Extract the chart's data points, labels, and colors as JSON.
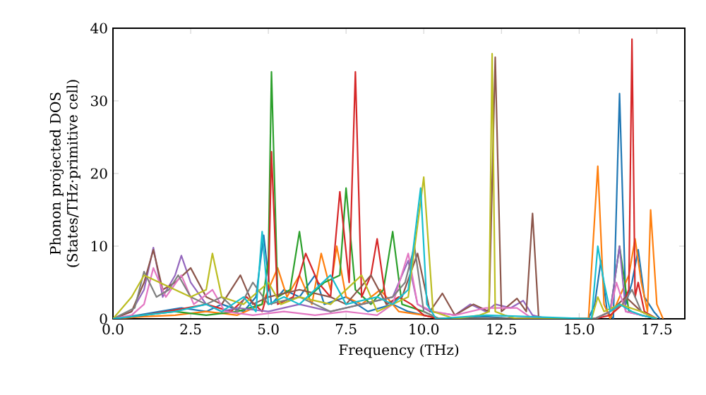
{
  "chart_data": {
    "type": "line",
    "xlabel": "Frequency (THz)",
    "ylabel": "Phonon projected DOS (States/THz·primitive cell)",
    "xlim": [
      0,
      18.4
    ],
    "ylim": [
      0,
      40
    ],
    "xticks": [
      {
        "value": 0,
        "label": "0.0"
      },
      {
        "value": 2.5,
        "label": "2.5"
      },
      {
        "value": 5,
        "label": "5.0"
      },
      {
        "value": 7.5,
        "label": "7.5"
      },
      {
        "value": 10,
        "label": "10.0"
      },
      {
        "value": 12.5,
        "label": "12.5"
      },
      {
        "value": 15,
        "label": "15.0"
      },
      {
        "value": 17.5,
        "label": "17.5"
      }
    ],
    "yticks": [
      0,
      10,
      20,
      30,
      40
    ],
    "grid": false,
    "marker": "none",
    "line_style": "solid",
    "series": [
      {
        "color": "#1f77b4",
        "x": [
          0,
          0.8,
          1.5,
          2.2,
          3,
          3.5,
          4.2,
          4.6,
          4.85,
          5.1,
          5.5,
          6.0,
          6.5,
          6.8,
          7.5,
          8.2,
          9.0,
          9.5,
          10.0,
          10.5,
          12,
          13,
          15.3,
          15.5,
          15.7,
          15.9,
          16.1,
          16.3,
          16.5,
          16.7,
          16.9,
          17.1,
          17.4,
          17.6
        ],
        "values": [
          0,
          0.5,
          1,
          1.5,
          1,
          2,
          1,
          3,
          11.5,
          2,
          4,
          3,
          6,
          2,
          3,
          1,
          2,
          1,
          0.5,
          0,
          0.3,
          0,
          0,
          2,
          8,
          1,
          0,
          31,
          2,
          5,
          9.5,
          3,
          1,
          0
        ]
      },
      {
        "color": "#ff7f0e",
        "x": [
          0,
          1,
          2,
          3,
          4,
          4.8,
          5.3,
          5.6,
          6.0,
          6.4,
          6.7,
          7.0,
          7.2,
          7.5,
          8,
          8.6,
          9.2,
          10,
          10.5,
          15.3,
          15.6,
          15.8,
          16.0,
          16.3,
          16.6,
          16.8,
          17.0,
          17.2,
          17.3,
          17.5,
          17.7
        ],
        "values": [
          0,
          0.3,
          0.5,
          1,
          0.5,
          2,
          7,
          3,
          6,
          2,
          9,
          4,
          10,
          3,
          2,
          4,
          1,
          0.5,
          0,
          0,
          21,
          2,
          0,
          3,
          6,
          11,
          5,
          1,
          15,
          2,
          0
        ]
      },
      {
        "color": "#2ca02c",
        "x": [
          0,
          1,
          2,
          3,
          4,
          4.8,
          5.0,
          5.1,
          5.3,
          5.7,
          6.0,
          6.3,
          6.8,
          7.3,
          7.5,
          7.8,
          8.3,
          8.7,
          9.0,
          9.3,
          10,
          10.5,
          15.5,
          16.0,
          16.3,
          16.6,
          17.0,
          17.5
        ],
        "values": [
          0,
          0.5,
          1,
          0.5,
          1,
          2,
          8,
          34,
          3,
          4,
          12,
          3,
          5,
          6,
          18,
          4,
          2,
          4,
          12,
          2,
          1,
          0,
          0,
          1,
          10,
          1,
          0.5,
          0
        ]
      },
      {
        "color": "#d62728",
        "x": [
          0,
          1,
          2,
          3,
          3.8,
          4.3,
          4.8,
          5.0,
          5.1,
          5.3,
          5.8,
          6.2,
          6.6,
          7.0,
          7.3,
          7.6,
          7.8,
          8.0,
          8.3,
          8.5,
          8.8,
          9.2,
          9.6,
          10,
          10.5,
          15.5,
          16.0,
          16.4,
          16.6,
          16.7,
          16.8,
          16.9,
          17.1,
          17.5
        ],
        "values": [
          0,
          0.5,
          1.2,
          2,
          1,
          3,
          1,
          4,
          23,
          2,
          3,
          9,
          5,
          3,
          17.5,
          5,
          34,
          3,
          6,
          11,
          2,
          3,
          2,
          0.5,
          0,
          0,
          0.5,
          2,
          4,
          38.5,
          3,
          5,
          1,
          0
        ]
      },
      {
        "color": "#9467bd",
        "x": [
          0,
          0.6,
          1.0,
          1.3,
          1.6,
          2.0,
          2.2,
          2.5,
          3.0,
          3.5,
          4,
          5,
          6,
          7,
          8,
          9,
          9.5,
          9.8,
          10.2,
          11,
          11.5,
          12,
          12.3,
          12.8,
          13.2,
          13.5,
          14,
          15.5,
          16.0,
          16.3,
          16.5,
          17,
          17.5
        ],
        "values": [
          0,
          1,
          4,
          9.8,
          3,
          6,
          8.7,
          5,
          2,
          1,
          1.5,
          1,
          2,
          1,
          2,
          3,
          8,
          2,
          1,
          0.5,
          2,
          1,
          2,
          1.5,
          2.5,
          0.5,
          0,
          0,
          1,
          10,
          1,
          0.5,
          0
        ]
      },
      {
        "color": "#8c564b",
        "x": [
          0,
          0.6,
          1.0,
          1.3,
          1.6,
          2.0,
          2.5,
          3.0,
          3.5,
          4.1,
          4.5,
          5,
          6,
          7,
          7.5,
          8.3,
          8.8,
          9.3,
          9.8,
          10.2,
          10.6,
          11,
          11.6,
          12.1,
          12.3,
          12.5,
          13.0,
          13.3,
          13.5,
          13.7,
          15.5,
          16,
          16.5,
          17,
          17.5
        ],
        "values": [
          0,
          1,
          5,
          9.5,
          4,
          5,
          7,
          3,
          2,
          6,
          2,
          3,
          4,
          3,
          2,
          6,
          2,
          3,
          9,
          1,
          3.5,
          0.5,
          2,
          1,
          36,
          1,
          2.8,
          1,
          14.5,
          0,
          0,
          1,
          3,
          1,
          0
        ]
      },
      {
        "color": "#e377c2",
        "x": [
          0,
          0.6,
          1.0,
          1.3,
          1.7,
          2.2,
          2.6,
          3.2,
          3.6,
          4.5,
          5.5,
          6.5,
          7.5,
          8.5,
          9.0,
          9.5,
          9.8,
          10.3,
          11,
          12,
          13,
          13.5,
          15.5,
          16.0,
          16.2,
          16.5,
          17,
          17.5
        ],
        "values": [
          0,
          0.5,
          2,
          7,
          3,
          6,
          2,
          4,
          1,
          0.5,
          1,
          0.5,
          1,
          0.5,
          2,
          9,
          2,
          1,
          0.5,
          1.5,
          1.5,
          0,
          0,
          1,
          5,
          1,
          0.5,
          0
        ]
      },
      {
        "color": "#7f7f7f",
        "x": [
          0,
          0.7,
          1.0,
          1.4,
          1.8,
          2.1,
          2.5,
          3.0,
          3.5,
          4.0,
          4.5,
          5,
          6,
          7,
          8,
          9,
          9.4,
          9.7,
          10,
          10.5,
          15.5,
          16,
          16.4,
          16.7,
          17,
          17.5
        ],
        "values": [
          0,
          1.5,
          6.5,
          3,
          4,
          6,
          3,
          2,
          3,
          1,
          5,
          2,
          3,
          1,
          2,
          3,
          5,
          10,
          1,
          0,
          0,
          1,
          2,
          4,
          1,
          0
        ]
      },
      {
        "color": "#bcbd22",
        "x": [
          0,
          0.6,
          1.0,
          1.5,
          2.0,
          2.5,
          3.0,
          3.2,
          3.5,
          4.2,
          5.0,
          5.4,
          6,
          7,
          8.0,
          8.5,
          9.0,
          9.5,
          10.0,
          10.3,
          11,
          11.8,
          12.1,
          12.2,
          12.3,
          12.6,
          13,
          15.4,
          15.6,
          15.8,
          16.3,
          17,
          17.5
        ],
        "values": [
          0,
          3,
          6,
          5,
          4,
          3,
          4,
          9,
          3,
          2,
          5,
          2,
          3,
          2,
          6,
          1,
          2,
          3,
          19.5,
          1,
          0,
          0.5,
          1,
          36.5,
          1,
          0.5,
          0,
          0,
          3,
          1,
          2,
          1,
          0
        ]
      },
      {
        "color": "#17becf",
        "x": [
          0,
          1,
          2,
          3,
          3.5,
          4.2,
          4.6,
          4.8,
          5.0,
          5.5,
          6.0,
          6.5,
          7.0,
          7.5,
          8.5,
          9.0,
          9.5,
          9.9,
          10.1,
          10.4,
          12,
          15.4,
          15.6,
          15.8,
          16.0,
          16.3,
          16.7,
          17,
          17.5
        ],
        "values": [
          0,
          0.5,
          1,
          2,
          1,
          3,
          1,
          12,
          2,
          3,
          2,
          4,
          6,
          2,
          3,
          2,
          4,
          18,
          2,
          0,
          0.5,
          0,
          10,
          5,
          1,
          2,
          1,
          0.5,
          0
        ]
      }
    ]
  }
}
